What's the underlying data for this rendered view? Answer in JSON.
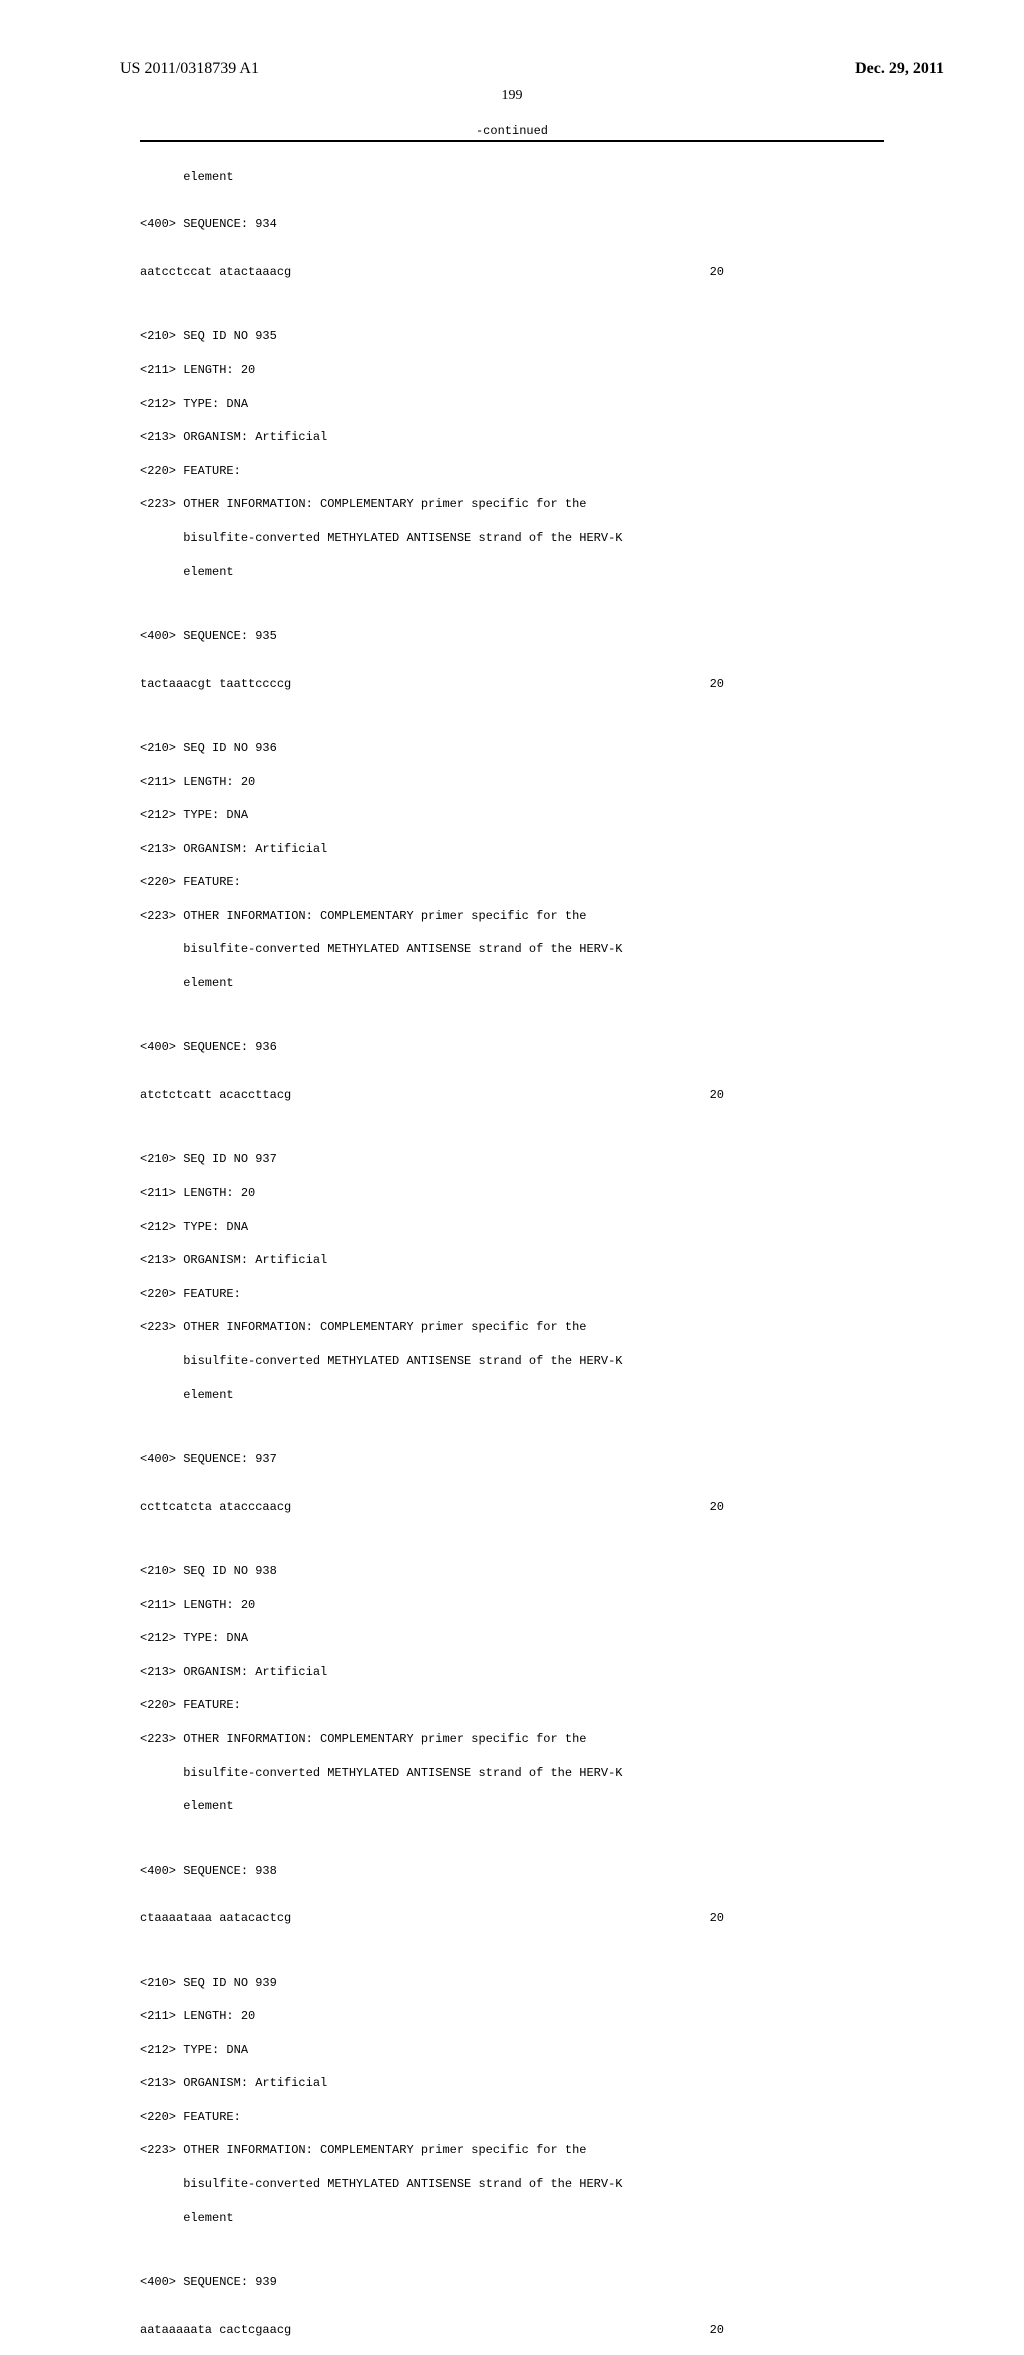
{
  "header": {
    "doc_number": "US 2011/0318739 A1",
    "doc_date": "Dec. 29, 2011"
  },
  "page_number": "199",
  "continued_label": "-continued",
  "common": {
    "length_tag": "<211> LENGTH: 20",
    "type_tag": "<212> TYPE: DNA",
    "organism_tag": "<213> ORGANISM: Artificial",
    "feature_tag": "<220> FEATURE:",
    "info_line1": "<223> OTHER INFORMATION: COMPLEMENTARY primer specific for the",
    "info_line2": "      bisulfite-converted METHYLATED ANTISENSE strand of the HERV-K",
    "info_line3": "      element",
    "seq_count": "20"
  },
  "entries": [
    {
      "element_only": true,
      "seq_tag": "<400> SEQUENCE: 934",
      "sequence": "aatcctccat atactaaacg"
    },
    {
      "seqid_tag": "<210> SEQ ID NO 935",
      "seq_tag": "<400> SEQUENCE: 935",
      "sequence": "tactaaacgt taattccccg"
    },
    {
      "seqid_tag": "<210> SEQ ID NO 936",
      "seq_tag": "<400> SEQUENCE: 936",
      "sequence": "atctctcatt acaccttacg"
    },
    {
      "seqid_tag": "<210> SEQ ID NO 937",
      "seq_tag": "<400> SEQUENCE: 937",
      "sequence": "ccttcatcta atacccaacg"
    },
    {
      "seqid_tag": "<210> SEQ ID NO 938",
      "seq_tag": "<400> SEQUENCE: 938",
      "sequence": "ctaaaataaa aatacactcg"
    },
    {
      "seqid_tag": "<210> SEQ ID NO 939",
      "seq_tag": "<400> SEQUENCE: 939",
      "sequence": "aataaaaata cactcgaacg"
    }
  ]
}
